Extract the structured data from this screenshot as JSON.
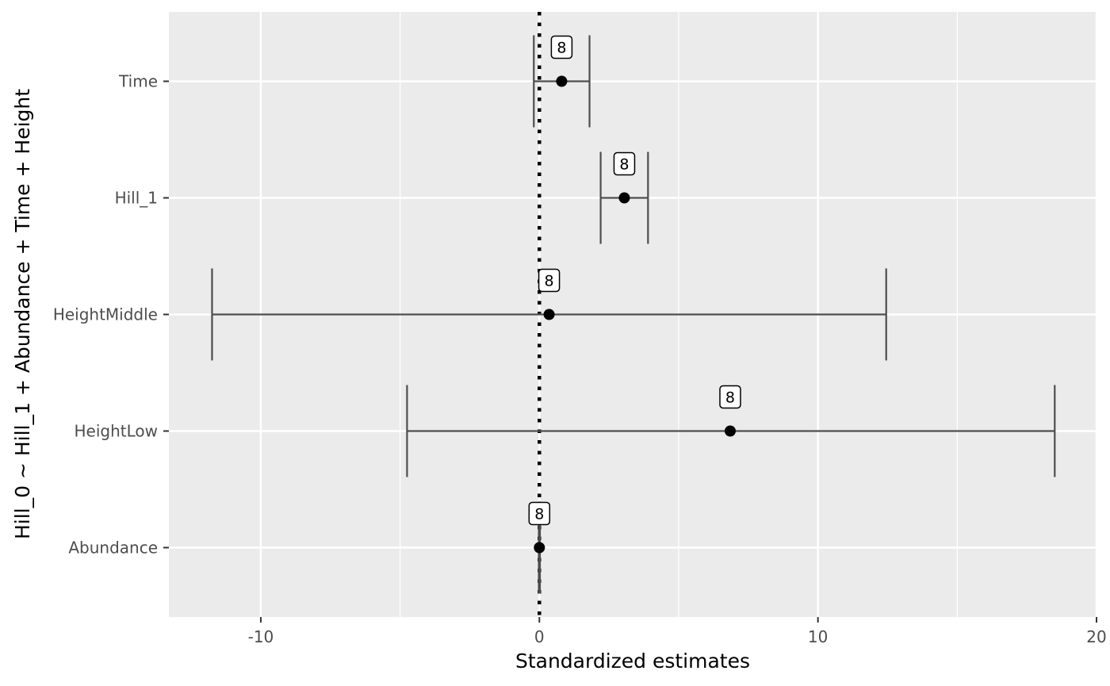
{
  "chart_data": {
    "type": "forest",
    "xlabel": "Standardized estimates",
    "ylabel": "Hill_0 ~ Hill_1 + Abundance + Time + Height",
    "xlim": [
      -13.3,
      20
    ],
    "x_ticks": [
      -10,
      0,
      10,
      20
    ],
    "x_tick_labels": [
      "-10",
      "0",
      "10",
      "20"
    ],
    "reference_line": 0,
    "grid": true,
    "colors": {
      "panel_background": "#ebebeb",
      "grid": "#ffffff",
      "error_bar": "#4d4d4d",
      "point": "#000000"
    },
    "rows": [
      {
        "term": "Time",
        "estimate": 0.8,
        "ci_low": -0.2,
        "ci_high": 1.8,
        "n_label": "8"
      },
      {
        "term": "Hill_1",
        "estimate": 3.05,
        "ci_low": 2.2,
        "ci_high": 3.9,
        "n_label": "8"
      },
      {
        "term": "HeightMiddle",
        "estimate": 0.35,
        "ci_low": -11.75,
        "ci_high": 12.45,
        "n_label": "8"
      },
      {
        "term": "HeightLow",
        "estimate": 6.85,
        "ci_low": -4.75,
        "ci_high": 18.5,
        "n_label": "8"
      },
      {
        "term": "Abundance",
        "estimate": 0.0,
        "ci_low": -0.02,
        "ci_high": 0.02,
        "n_label": "8"
      }
    ]
  }
}
